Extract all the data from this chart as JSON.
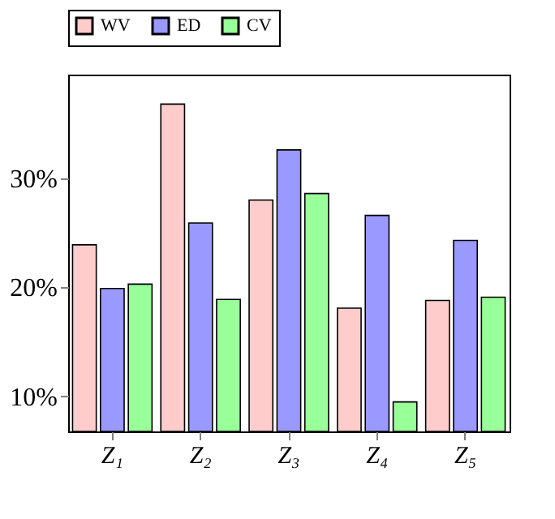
{
  "chart_data": {
    "type": "bar",
    "categories": [
      "Z₁",
      "Z₂",
      "Z₃",
      "Z₄",
      "Z₅"
    ],
    "series": [
      {
        "name": "WV",
        "color": "#ffcccc",
        "values": [
          23.9,
          36.8,
          28.0,
          18.1,
          18.8
        ]
      },
      {
        "name": "ED",
        "color": "#9999ff",
        "values": [
          19.9,
          25.9,
          32.6,
          26.6,
          24.3
        ]
      },
      {
        "name": "CV",
        "color": "#99ff99",
        "values": [
          20.3,
          18.9,
          28.6,
          9.5,
          19.1
        ]
      }
    ],
    "ylim": [
      6.8,
      39.5
    ],
    "yticks": [
      {
        "value": 10,
        "label": "10%"
      },
      {
        "value": 20,
        "label": "20%"
      },
      {
        "value": 30,
        "label": "30%"
      }
    ],
    "grid": false,
    "legend": "top"
  }
}
